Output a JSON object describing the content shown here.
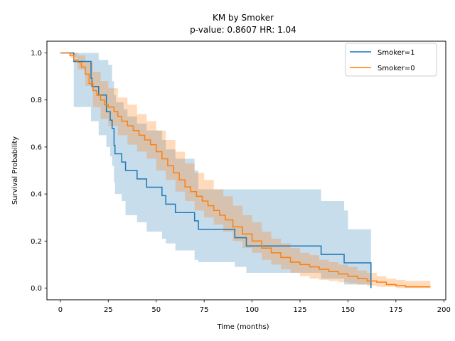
{
  "chart_data": {
    "type": "line",
    "title": "KM by Smoker",
    "subtitle": "p-value: 0.8607  HR: 1.04",
    "xlabel": "Time (months)",
    "ylabel": "Survival Probability",
    "xlim": [
      -7,
      201
    ],
    "ylim": [
      -0.05,
      1.05
    ],
    "xticks": [
      0,
      25,
      50,
      75,
      100,
      125,
      150,
      175,
      200
    ],
    "yticks": [
      0.0,
      0.2,
      0.4,
      0.6,
      0.8,
      1.0
    ],
    "ytick_labels": [
      "0.0",
      "0.2",
      "0.4",
      "0.6",
      "0.8",
      "1.0"
    ],
    "grid": false,
    "legend_position": "top-right",
    "series": [
      {
        "name": "Smoker=1",
        "color": "#1f77b4",
        "ci_color": "#1f77b4",
        "steps": [
          [
            0,
            1.0
          ],
          [
            7,
            1.0
          ],
          [
            7,
            0.964
          ],
          [
            16,
            0.964
          ],
          [
            16,
            0.893
          ],
          [
            16.5,
            0.857
          ],
          [
            20,
            0.821
          ],
          [
            24,
            0.786
          ],
          [
            24,
            0.75
          ],
          [
            26,
            0.714
          ],
          [
            27,
            0.679
          ],
          [
            28,
            0.607
          ],
          [
            28.5,
            0.571
          ],
          [
            32,
            0.536
          ],
          [
            34,
            0.5
          ],
          [
            40,
            0.464
          ],
          [
            45,
            0.429
          ],
          [
            53,
            0.393
          ],
          [
            55,
            0.357
          ],
          [
            60,
            0.321
          ],
          [
            70,
            0.286
          ],
          [
            72,
            0.25
          ],
          [
            91,
            0.214
          ],
          [
            97,
            0.179
          ],
          [
            136,
            0.143
          ],
          [
            148,
            0.107
          ],
          [
            162,
            0.071
          ],
          [
            162,
            0.0
          ]
        ],
        "ci_upper": [
          [
            0,
            1.0
          ],
          [
            12,
            1.0
          ],
          [
            20,
            1.0
          ],
          [
            20,
            0.97
          ],
          [
            25,
            0.95
          ],
          [
            27,
            0.88
          ],
          [
            28,
            0.82
          ],
          [
            29,
            0.79
          ],
          [
            33,
            0.76
          ],
          [
            35,
            0.73
          ],
          [
            40,
            0.7
          ],
          [
            45,
            0.67
          ],
          [
            53,
            0.63
          ],
          [
            55,
            0.59
          ],
          [
            60,
            0.55
          ],
          [
            70,
            0.5
          ],
          [
            72,
            0.42
          ],
          [
            100,
            0.42
          ],
          [
            136,
            0.42
          ],
          [
            136,
            0.37
          ],
          [
            148,
            0.33
          ],
          [
            150,
            0.25
          ],
          [
            162,
            0.25
          ]
        ],
        "ci_lower": [
          [
            0,
            1.0
          ],
          [
            7,
            1.0
          ],
          [
            7,
            0.77
          ],
          [
            16,
            0.77
          ],
          [
            16,
            0.71
          ],
          [
            20,
            0.65
          ],
          [
            24,
            0.6
          ],
          [
            26,
            0.56
          ],
          [
            27,
            0.52
          ],
          [
            28,
            0.45
          ],
          [
            28.5,
            0.4
          ],
          [
            32,
            0.37
          ],
          [
            34,
            0.31
          ],
          [
            40,
            0.28
          ],
          [
            45,
            0.24
          ],
          [
            53,
            0.21
          ],
          [
            55,
            0.19
          ],
          [
            60,
            0.16
          ],
          [
            70,
            0.12
          ],
          [
            72,
            0.11
          ],
          [
            91,
            0.09
          ],
          [
            97,
            0.065
          ],
          [
            136,
            0.04
          ],
          [
            148,
            0.015
          ],
          [
            162,
            0.01
          ]
        ]
      },
      {
        "name": "Smoker=0",
        "color": "#ff7f0e",
        "ci_color": "#ff7f0e",
        "points": [
          [
            0,
            1.0
          ],
          [
            3,
            1.0
          ],
          [
            5,
            0.99
          ],
          [
            7,
            0.97
          ],
          [
            9,
            0.96
          ],
          [
            11,
            0.94
          ],
          [
            13,
            0.91
          ],
          [
            15,
            0.87
          ],
          [
            17,
            0.84
          ],
          [
            19,
            0.82
          ],
          [
            21,
            0.8
          ],
          [
            23,
            0.78
          ],
          [
            25,
            0.77
          ],
          [
            28,
            0.75
          ],
          [
            30,
            0.73
          ],
          [
            32,
            0.71
          ],
          [
            35,
            0.69
          ],
          [
            38,
            0.67
          ],
          [
            41,
            0.65
          ],
          [
            44,
            0.63
          ],
          [
            47,
            0.61
          ],
          [
            50,
            0.58
          ],
          [
            53,
            0.55
          ],
          [
            56,
            0.52
          ],
          [
            59,
            0.49
          ],
          [
            62,
            0.46
          ],
          [
            65,
            0.43
          ],
          [
            68,
            0.41
          ],
          [
            71,
            0.39
          ],
          [
            74,
            0.37
          ],
          [
            77,
            0.35
          ],
          [
            80,
            0.33
          ],
          [
            83,
            0.31
          ],
          [
            86,
            0.29
          ],
          [
            90,
            0.26
          ],
          [
            95,
            0.23
          ],
          [
            100,
            0.2
          ],
          [
            105,
            0.17
          ],
          [
            110,
            0.15
          ],
          [
            115,
            0.13
          ],
          [
            120,
            0.11
          ],
          [
            125,
            0.1
          ],
          [
            130,
            0.09
          ],
          [
            135,
            0.08
          ],
          [
            140,
            0.07
          ],
          [
            145,
            0.06
          ],
          [
            150,
            0.05
          ],
          [
            155,
            0.04
          ],
          [
            160,
            0.03
          ],
          [
            165,
            0.025
          ],
          [
            170,
            0.015
          ],
          [
            175,
            0.01
          ],
          [
            180,
            0.005
          ],
          [
            193,
            0.005
          ]
        ],
        "ci_upper": [
          [
            0,
            1.0
          ],
          [
            5,
            1.0
          ],
          [
            9,
            0.99
          ],
          [
            13,
            0.96
          ],
          [
            17,
            0.92
          ],
          [
            21,
            0.88
          ],
          [
            25,
            0.85
          ],
          [
            30,
            0.81
          ],
          [
            35,
            0.78
          ],
          [
            40,
            0.74
          ],
          [
            45,
            0.71
          ],
          [
            50,
            0.67
          ],
          [
            55,
            0.63
          ],
          [
            60,
            0.58
          ],
          [
            65,
            0.53
          ],
          [
            70,
            0.49
          ],
          [
            75,
            0.46
          ],
          [
            80,
            0.42
          ],
          [
            85,
            0.39
          ],
          [
            90,
            0.35
          ],
          [
            95,
            0.31
          ],
          [
            100,
            0.28
          ],
          [
            105,
            0.24
          ],
          [
            110,
            0.21
          ],
          [
            115,
            0.19
          ],
          [
            120,
            0.17
          ],
          [
            125,
            0.15
          ],
          [
            130,
            0.14
          ],
          [
            135,
            0.12
          ],
          [
            140,
            0.11
          ],
          [
            145,
            0.1
          ],
          [
            150,
            0.09
          ],
          [
            155,
            0.075
          ],
          [
            160,
            0.065
          ],
          [
            165,
            0.05
          ],
          [
            170,
            0.04
          ],
          [
            175,
            0.035
          ],
          [
            180,
            0.03
          ],
          [
            193,
            0.03
          ]
        ],
        "ci_lower": [
          [
            0,
            1.0
          ],
          [
            5,
            0.98
          ],
          [
            9,
            0.93
          ],
          [
            13,
            0.86
          ],
          [
            17,
            0.77
          ],
          [
            21,
            0.72
          ],
          [
            25,
            0.69
          ],
          [
            30,
            0.65
          ],
          [
            35,
            0.61
          ],
          [
            40,
            0.58
          ],
          [
            45,
            0.55
          ],
          [
            50,
            0.5
          ],
          [
            55,
            0.46
          ],
          [
            60,
            0.41
          ],
          [
            65,
            0.37
          ],
          [
            70,
            0.33
          ],
          [
            75,
            0.3
          ],
          [
            80,
            0.27
          ],
          [
            85,
            0.24
          ],
          [
            90,
            0.2
          ],
          [
            95,
            0.17
          ],
          [
            100,
            0.15
          ],
          [
            105,
            0.12
          ],
          [
            110,
            0.1
          ],
          [
            115,
            0.08
          ],
          [
            120,
            0.065
          ],
          [
            125,
            0.05
          ],
          [
            130,
            0.04
          ],
          [
            135,
            0.035
          ],
          [
            140,
            0.03
          ],
          [
            145,
            0.025
          ],
          [
            150,
            0.02
          ],
          [
            155,
            0.015
          ],
          [
            160,
            0.01
          ],
          [
            165,
            0.005
          ],
          [
            175,
            0.0
          ],
          [
            193,
            0.0
          ]
        ]
      }
    ]
  }
}
